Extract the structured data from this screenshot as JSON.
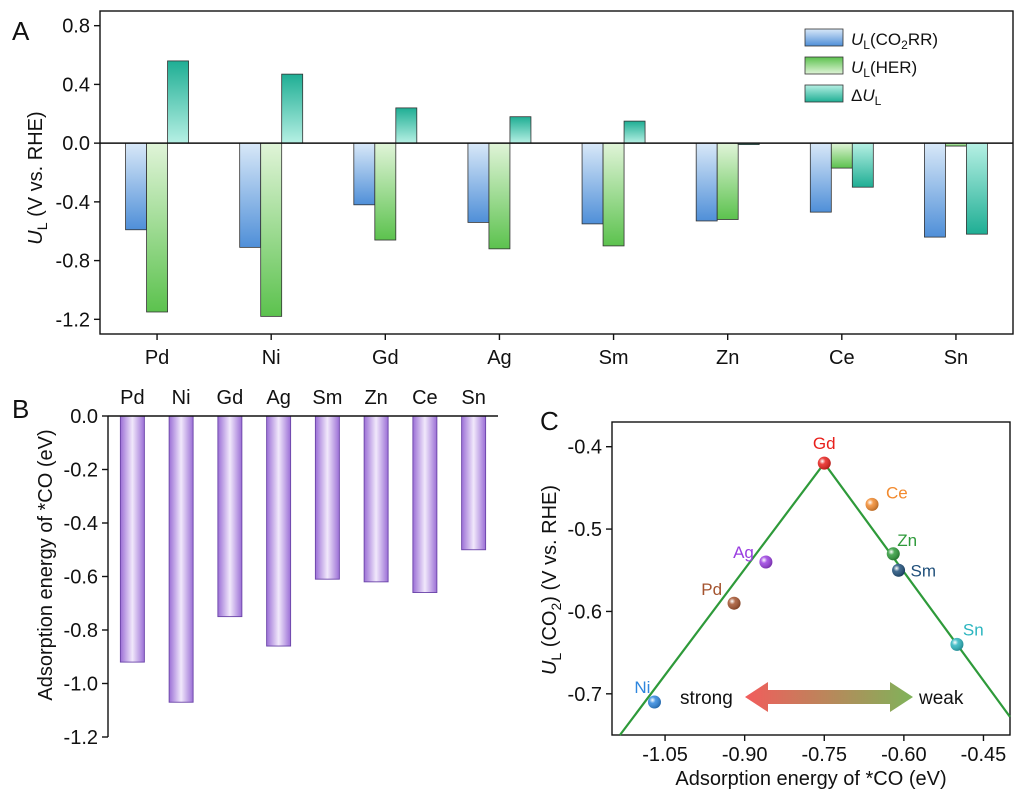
{
  "chart_data": [
    {
      "panel": "A",
      "type": "bar",
      "ylabel_main": "U",
      "ylabel_sub": "L",
      "ylabel_rest": " (V vs. RHE)",
      "categories": [
        "Pd",
        "Ni",
        "Gd",
        "Ag",
        "Sm",
        "Zn",
        "Ce",
        "Sn"
      ],
      "ylim": [
        -1.3,
        0.9
      ],
      "yticks": [
        "0.8",
        "0.4",
        "0.0",
        "-0.4",
        "-0.8",
        "-1.2"
      ],
      "legend_position": "top-right",
      "series": [
        {
          "name": "U_L(CO2RR)",
          "legend_main": "U",
          "legend_sub": "L",
          "legend_tail": "(CO",
          "legend_sub2": "2",
          "legend_end": "RR)",
          "color": "#4f8fd8",
          "values": [
            -0.59,
            -0.71,
            -0.42,
            -0.54,
            -0.55,
            -0.53,
            -0.47,
            -0.64
          ]
        },
        {
          "name": "U_L(HER)",
          "legend_main": "U",
          "legend_sub": "L",
          "legend_tail": "(HER)",
          "color": "#5cc24e",
          "values": [
            -1.15,
            -1.18,
            -0.66,
            -0.72,
            -0.7,
            -0.52,
            -0.17,
            -0.02
          ]
        },
        {
          "name": "ΔU_L",
          "legend_pre": "Δ",
          "legend_main": "U",
          "legend_sub": "L",
          "color": "#2bbfa5",
          "values": [
            0.56,
            0.47,
            0.24,
            0.18,
            0.15,
            -0.01,
            -0.3,
            -0.62
          ]
        }
      ]
    },
    {
      "panel": "B",
      "type": "bar",
      "ylabel": "Adsorption energy of *CO (eV)",
      "categories": [
        "Pd",
        "Ni",
        "Gd",
        "Ag",
        "Sm",
        "Zn",
        "Ce",
        "Sn"
      ],
      "values": [
        -0.92,
        -1.07,
        -0.75,
        -0.86,
        -0.61,
        -0.62,
        -0.66,
        -0.5
      ],
      "ylim": [
        -1.2,
        0.0
      ],
      "yticks": [
        "0.0",
        "-0.2",
        "-0.4",
        "-0.6",
        "-0.8",
        "-1.0",
        "-1.2"
      ],
      "color": "#9b6fd6"
    },
    {
      "panel": "C",
      "type": "scatter",
      "xlabel": "Adsorption energy of *CO (eV)",
      "ylabel_main": "U",
      "ylabel_sub": "L",
      "ylabel_mid": " (CO",
      "ylabel_sub2": "2",
      "ylabel_end": ") (V vs. RHE)",
      "xlim": [
        -1.15,
        -0.4
      ],
      "ylim": [
        -0.75,
        -0.37
      ],
      "xticks": [
        -1.05,
        -0.9,
        -0.75,
        -0.6,
        -0.45
      ],
      "xtick_labels": [
        "-1.05",
        "-0.90",
        "-0.75",
        "-0.60",
        "-0.45"
      ],
      "yticks": [
        -0.4,
        -0.5,
        -0.6,
        -0.7
      ],
      "ytick_labels": [
        "-0.4",
        "-0.5",
        "-0.6",
        "-0.7"
      ],
      "points": [
        {
          "label": "Gd",
          "x": -0.75,
          "y": -0.42,
          "color": "#e8201c"
        },
        {
          "label": "Ce",
          "x": -0.66,
          "y": -0.47,
          "color": "#f28a2e"
        },
        {
          "label": "Zn",
          "x": -0.62,
          "y": -0.53,
          "color": "#2e9a3a"
        },
        {
          "label": "Sm",
          "x": -0.61,
          "y": -0.55,
          "color": "#1f4f7a"
        },
        {
          "label": "Ag",
          "x": -0.86,
          "y": -0.54,
          "color": "#9a3de0"
        },
        {
          "label": "Pd",
          "x": -0.92,
          "y": -0.59,
          "color": "#a4532e"
        },
        {
          "label": "Sn",
          "x": -0.5,
          "y": -0.64,
          "color": "#2bb5bf"
        },
        {
          "label": "Ni",
          "x": -1.07,
          "y": -0.71,
          "color": "#2e86de"
        }
      ],
      "volcano_line": {
        "apex": [
          -0.75,
          -0.42
        ],
        "left": [
          -1.135,
          -0.75
        ],
        "right": [
          -0.4,
          -0.728
        ],
        "color": "#2e9a3a"
      },
      "arrow_left_label": "strong",
      "arrow_right_label": "weak"
    }
  ],
  "panel_letters": {
    "a": "A",
    "b": "B",
    "c": "C"
  }
}
